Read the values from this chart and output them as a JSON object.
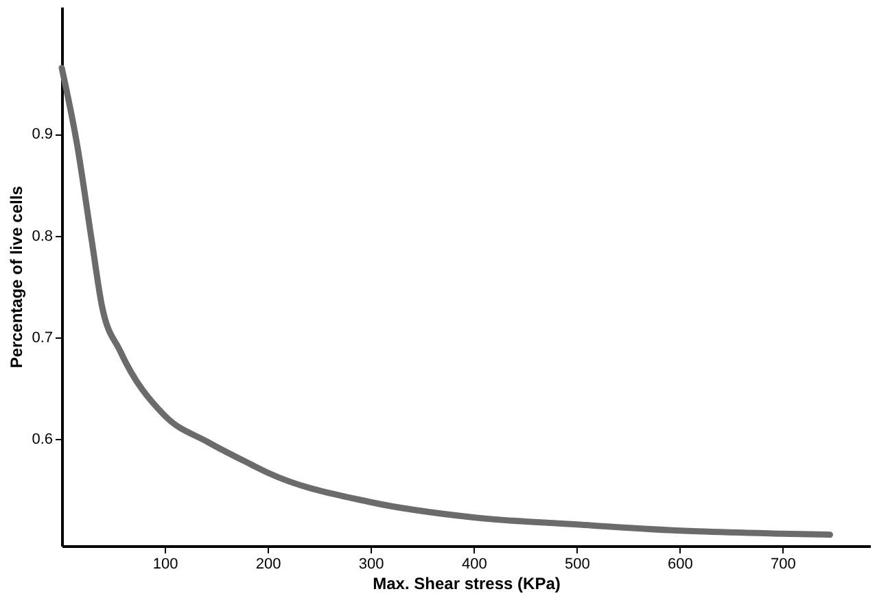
{
  "chart_data": {
    "type": "line",
    "xlabel": "Max. Shear stress (KPa)",
    "ylabel": "Percentage of live cells",
    "x": [
      0,
      15,
      29,
      39,
      57,
      100,
      142,
      184,
      200,
      300,
      400,
      500,
      600,
      700,
      746
    ],
    "series": [
      {
        "color": "#6b6b6b",
        "values": [
          0.965,
          0.889,
          0.796,
          0.731,
          0.686,
          0.623,
          0.597,
          0.575,
          0.567,
          0.538,
          0.523,
          0.516,
          0.51,
          0.507,
          0.506
        ]
      }
    ],
    "xlim": [
      0,
      785
    ],
    "ylim": [
      0.495,
      1.025
    ],
    "xticks": [
      100,
      200,
      300,
      400,
      500,
      600,
      700
    ],
    "yticks": [
      0.6,
      0.7,
      0.8,
      0.9
    ],
    "grid": false,
    "marker": "none",
    "line_style": "solid"
  }
}
